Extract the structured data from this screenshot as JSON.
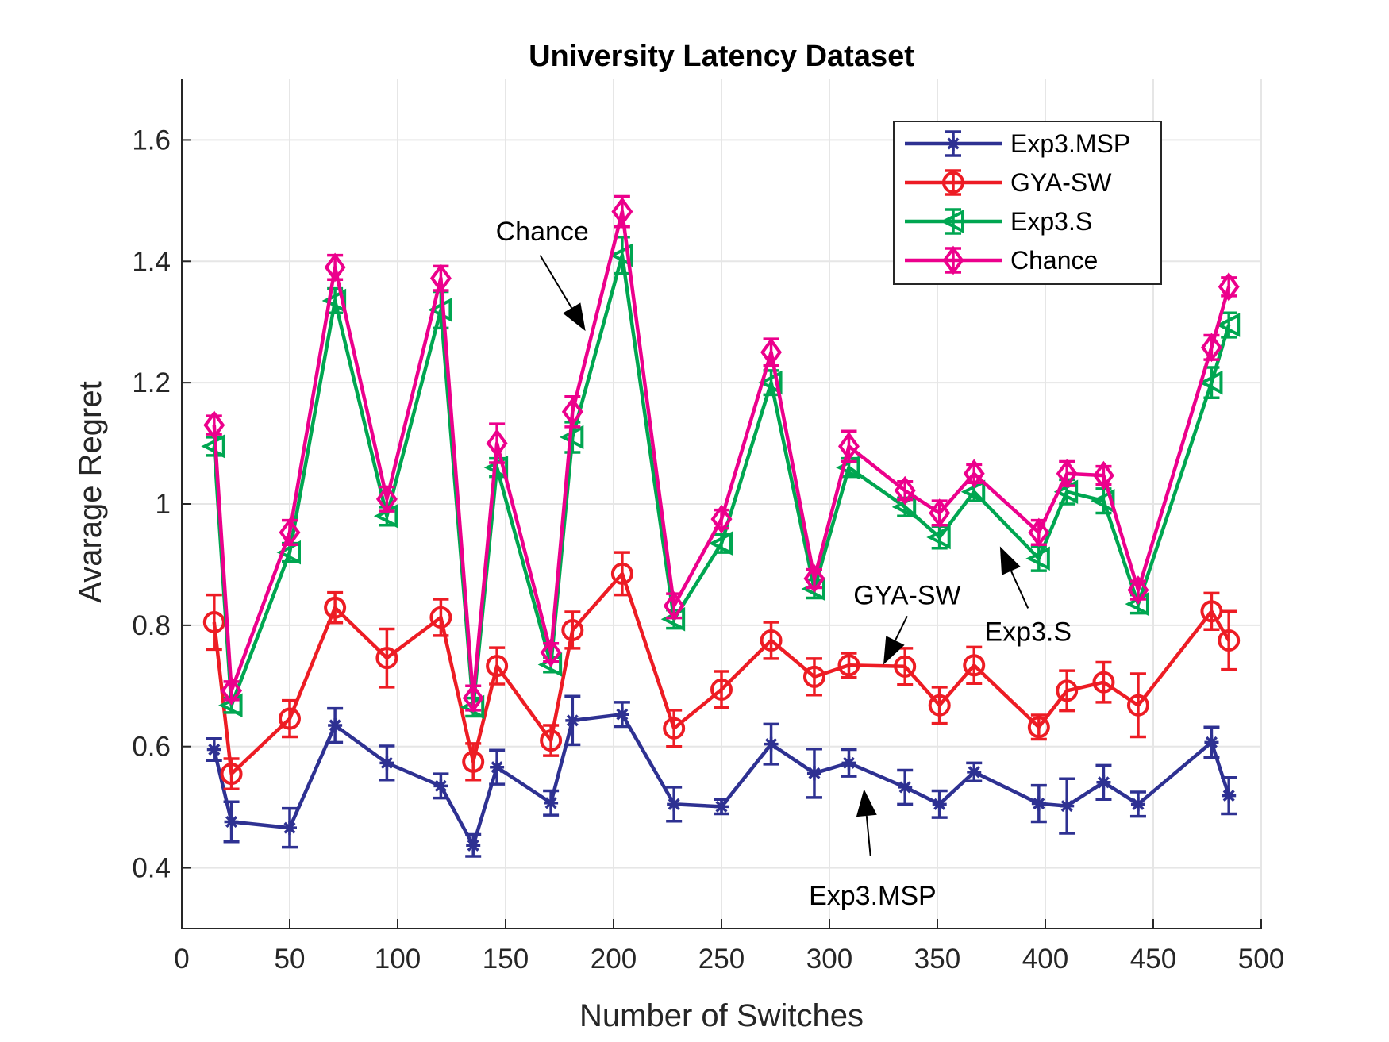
{
  "chart_data": {
    "type": "line",
    "title": "University Latency Dataset",
    "xlabel": "Number of Switches",
    "ylabel": "Avarage Regret",
    "xlim": [
      0,
      500
    ],
    "ylim": [
      0.3,
      1.7
    ],
    "xticks": [
      0,
      50,
      100,
      150,
      200,
      250,
      300,
      350,
      400,
      450,
      500
    ],
    "yticks": [
      0.4,
      0.6,
      0.8,
      1,
      1.2,
      1.4,
      1.6
    ],
    "ytick_labels": [
      "0.4",
      "0.6",
      "0.8",
      "1",
      "1.2",
      "1.4",
      "1.6"
    ],
    "grid": true,
    "legend_position": "top-right",
    "x": [
      15,
      23,
      50,
      71,
      95,
      120,
      135,
      146,
      171,
      181,
      204,
      228,
      250,
      273,
      293,
      309,
      335,
      351,
      367,
      397,
      410,
      427,
      443,
      477,
      485
    ],
    "series": [
      {
        "name": "Exp3.MSP",
        "color": "#2e3192",
        "marker": "asterisk",
        "values": [
          0.595,
          0.476,
          0.466,
          0.635,
          0.573,
          0.535,
          0.437,
          0.566,
          0.507,
          0.643,
          0.653,
          0.505,
          0.501,
          0.604,
          0.556,
          0.573,
          0.533,
          0.505,
          0.558,
          0.506,
          0.502,
          0.541,
          0.505,
          0.607,
          0.519
        ],
        "errors": [
          0.018,
          0.033,
          0.032,
          0.028,
          0.028,
          0.02,
          0.018,
          0.028,
          0.02,
          0.04,
          0.02,
          0.028,
          0.012,
          0.033,
          0.04,
          0.022,
          0.028,
          0.022,
          0.015,
          0.03,
          0.045,
          0.028,
          0.02,
          0.025,
          0.03
        ]
      },
      {
        "name": "GYA-SW",
        "color": "#ed1c24",
        "marker": "circle",
        "values": [
          0.805,
          0.555,
          0.646,
          0.829,
          0.746,
          0.813,
          0.575,
          0.733,
          0.61,
          0.792,
          0.885,
          0.63,
          0.694,
          0.775,
          0.715,
          0.734,
          0.732,
          0.668,
          0.734,
          0.632,
          0.692,
          0.706,
          0.668,
          0.823,
          0.775
        ],
        "errors": [
          0.045,
          0.025,
          0.03,
          0.025,
          0.048,
          0.03,
          0.03,
          0.03,
          0.025,
          0.03,
          0.035,
          0.03,
          0.03,
          0.03,
          0.03,
          0.02,
          0.03,
          0.03,
          0.03,
          0.02,
          0.033,
          0.033,
          0.052,
          0.03,
          0.048
        ]
      },
      {
        "name": "Exp3.S",
        "color": "#00a651",
        "marker": "triangle-left",
        "values": [
          1.095,
          0.668,
          0.92,
          1.335,
          0.98,
          1.32,
          0.665,
          1.06,
          0.735,
          1.11,
          1.41,
          0.81,
          0.935,
          1.2,
          0.86,
          1.06,
          0.995,
          0.945,
          1.02,
          0.91,
          1.02,
          1.005,
          0.835,
          1.2,
          1.295
        ],
        "errors": [
          0.015,
          0.012,
          0.015,
          0.02,
          0.015,
          0.03,
          0.015,
          0.015,
          0.012,
          0.025,
          0.03,
          0.015,
          0.015,
          0.02,
          0.015,
          0.015,
          0.015,
          0.018,
          0.015,
          0.02,
          0.02,
          0.02,
          0.015,
          0.025,
          0.02
        ]
      },
      {
        "name": "Chance",
        "color": "#ec008c",
        "marker": "diamond",
        "values": [
          1.13,
          0.692,
          0.953,
          1.39,
          1.008,
          1.372,
          0.68,
          1.1,
          0.755,
          1.152,
          1.482,
          0.832,
          0.975,
          1.25,
          0.877,
          1.095,
          1.022,
          0.985,
          1.05,
          0.953,
          1.05,
          1.047,
          0.858,
          1.258,
          1.358
        ],
        "errors": [
          0.015,
          0.015,
          0.02,
          0.02,
          0.02,
          0.02,
          0.02,
          0.032,
          0.015,
          0.025,
          0.025,
          0.02,
          0.015,
          0.022,
          0.015,
          0.025,
          0.015,
          0.02,
          0.015,
          0.02,
          0.02,
          0.015,
          0.015,
          0.02,
          0.015
        ]
      }
    ],
    "annotations": [
      {
        "text": "Chance",
        "label_x": 167,
        "label_y": 1.45,
        "arrow_from": [
          166,
          1.41
        ],
        "arrow_to": [
          187,
          1.285
        ]
      },
      {
        "text": "GYA-SW",
        "label_x": 336,
        "label_y": 0.85,
        "arrow_from": [
          336,
          0.815
        ],
        "arrow_to": [
          325,
          0.735
        ]
      },
      {
        "text": "Exp3.S",
        "label_x": 392,
        "label_y": 0.79,
        "arrow_from": [
          392,
          0.828
        ],
        "arrow_to": [
          379,
          0.93
        ]
      },
      {
        "text": "Exp3.MSP",
        "label_x": 320,
        "label_y": 0.355,
        "arrow_from": [
          319,
          0.42
        ],
        "arrow_to": [
          316,
          0.53
        ]
      }
    ]
  }
}
